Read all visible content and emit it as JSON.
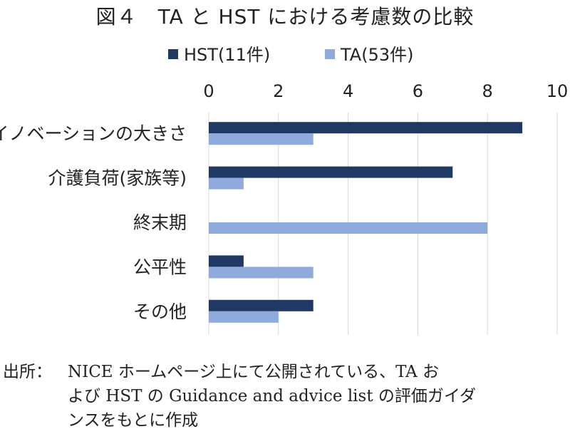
{
  "chart_data": {
    "type": "bar",
    "orientation": "horizontal",
    "title": "図４　TA と HST における考慮数の比較",
    "categories": [
      "イノベーションの大きさ",
      "介護負荷(家族等)",
      "終末期",
      "公平性",
      "その他"
    ],
    "series": [
      {
        "name": "HST(11件)",
        "values": [
          9,
          7,
          0,
          1,
          3
        ],
        "color": "#203864"
      },
      {
        "name": "TA(53件)",
        "values": [
          3,
          1,
          8,
          3,
          2
        ],
        "color": "#8faadc"
      }
    ],
    "xlim": [
      0,
      10
    ],
    "xticks": [
      "0",
      "2",
      "4",
      "6",
      "8",
      "10"
    ],
    "xaxis_position": "top",
    "grid": true,
    "legend": "top"
  },
  "source": {
    "label": "出所：",
    "lines": [
      "NICE ホームページ上にて公開されている、TA お",
      "よび HST の Guidance and advice list の評価ガイダ",
      "ンスをもとに作成"
    ]
  }
}
